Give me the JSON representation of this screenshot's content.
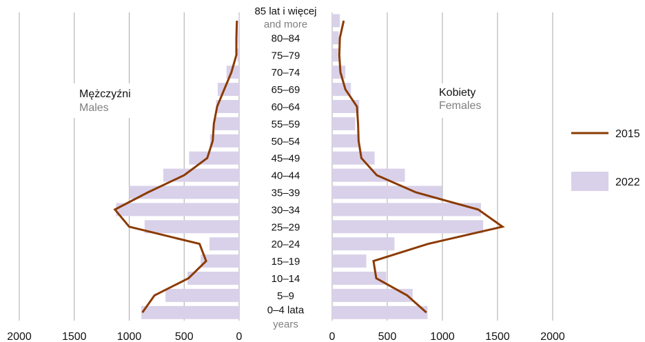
{
  "chart_data": {
    "type": "bar",
    "layout": "population-pyramid",
    "categories": [
      "85 lat i więcej",
      "80–84",
      "75–79",
      "70–74",
      "65–69",
      "60–64",
      "55–59",
      "50–54",
      "45–49",
      "40–44",
      "35–39",
      "30–34",
      "25–29",
      "20–24",
      "15–19",
      "10–14",
      "5–9",
      "0–4 lata"
    ],
    "category_sublabels": {
      "top": "and more",
      "bottom": "years"
    },
    "males": {
      "label": "Mężczyźni",
      "label_en": "Males",
      "bars_2022": [
        5,
        10,
        15,
        115,
        195,
        210,
        225,
        265,
        455,
        690,
        1000,
        1120,
        860,
        270,
        350,
        470,
        670,
        890
      ],
      "line_2015": [
        20,
        25,
        25,
        70,
        135,
        200,
        230,
        240,
        290,
        500,
        830,
        1130,
        1000,
        360,
        300,
        460,
        770,
        880
      ]
    },
    "females": {
      "label": "Kobiety",
      "label_en": "Females",
      "bars_2022": [
        70,
        60,
        60,
        120,
        170,
        245,
        210,
        240,
        385,
        660,
        995,
        1350,
        1370,
        565,
        310,
        490,
        730,
        865
      ],
      "line_2015": [
        105,
        70,
        65,
        75,
        120,
        225,
        235,
        240,
        265,
        405,
        760,
        1325,
        1545,
        870,
        375,
        400,
        680,
        855
      ]
    },
    "legend": [
      {
        "name": "2015",
        "kind": "line",
        "color": "#8b3a00"
      },
      {
        "name": "2022",
        "kind": "bar",
        "color": "#d9d1e9"
      }
    ],
    "xlim": [
      0,
      2000
    ],
    "x_ticks": [
      2000,
      1500,
      1000,
      500,
      0,
      500,
      1000,
      1500,
      2000
    ],
    "grid": true,
    "colors": {
      "line": "#8b3a00",
      "bar": "#d9d1e9",
      "grid": "#a8a8a8",
      "sublabel": "#7f7f7f",
      "text": "#111111"
    }
  }
}
